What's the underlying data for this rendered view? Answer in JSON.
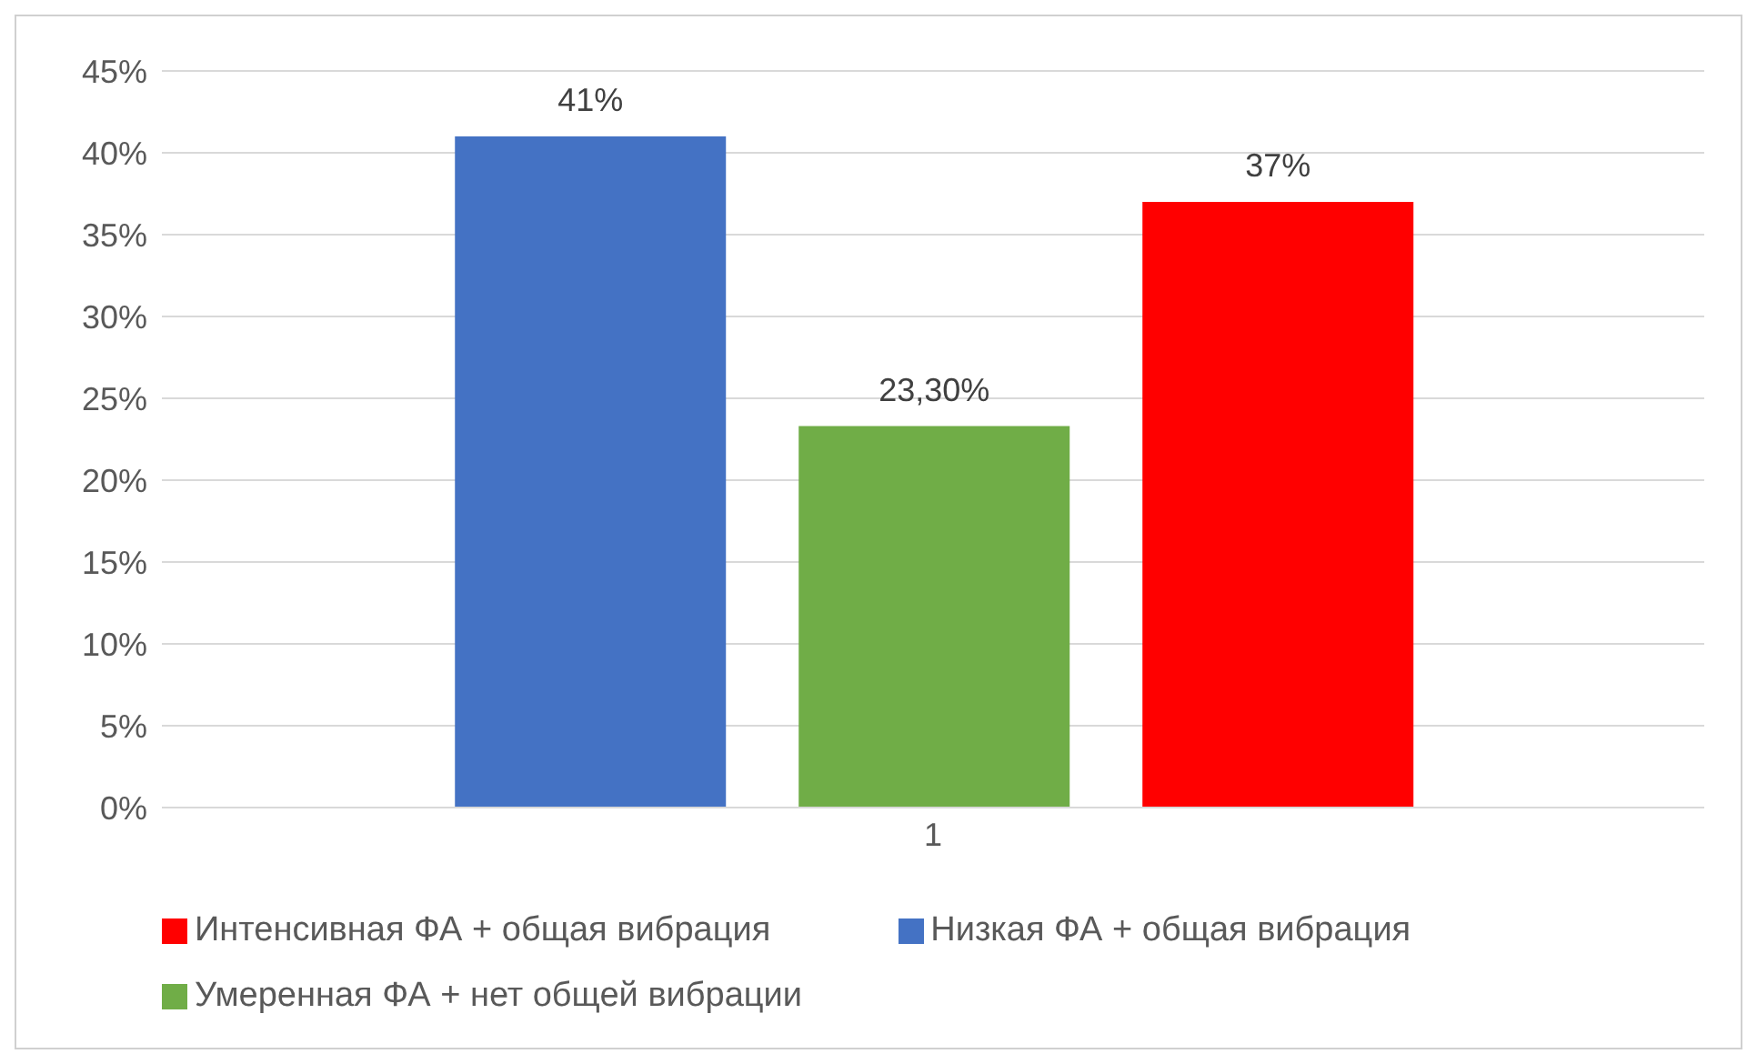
{
  "chart_data": {
    "type": "bar",
    "categories": [
      "1"
    ],
    "series": [
      {
        "name": "Низкая ФА + общая вибрация",
        "color": "#4472c4",
        "values": [
          41
        ],
        "value_labels": [
          "41%"
        ]
      },
      {
        "name": "Умеренная ФА + нет общей вибрации",
        "color": "#70ad47",
        "values": [
          23.3
        ],
        "value_labels": [
          "23,30%"
        ]
      },
      {
        "name": "Интенсивная ФА + общая вибрация",
        "color": "#ff0000",
        "values": [
          37
        ],
        "value_labels": [
          "37%"
        ]
      }
    ],
    "ylim": [
      0,
      45
    ],
    "yticks": [
      {
        "value": 0,
        "label": "0%"
      },
      {
        "value": 5,
        "label": "5%"
      },
      {
        "value": 10,
        "label": "10%"
      },
      {
        "value": 15,
        "label": "15%"
      },
      {
        "value": 20,
        "label": "20%"
      },
      {
        "value": 25,
        "label": "25%"
      },
      {
        "value": 30,
        "label": "30%"
      },
      {
        "value": 35,
        "label": "35%"
      },
      {
        "value": 40,
        "label": "40%"
      },
      {
        "value": 45,
        "label": "45%"
      }
    ],
    "grid": "y",
    "legend": "bottom"
  }
}
